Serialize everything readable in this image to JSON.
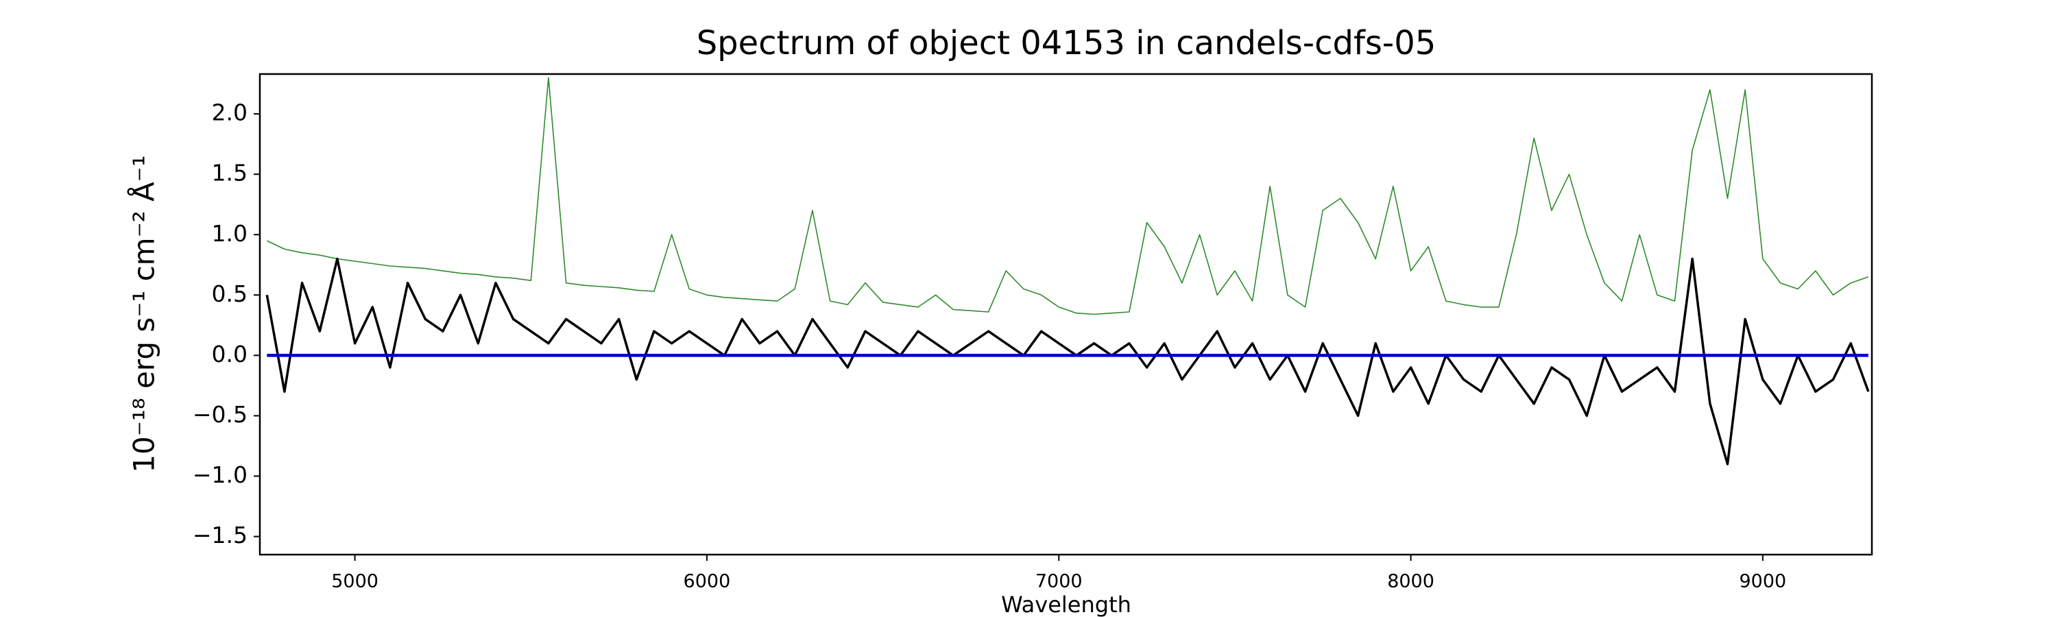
{
  "chart_data": {
    "type": "line",
    "title": "Spectrum of object 04153 in candels-cdfs-05",
    "xlabel": "Wavelength",
    "ylabel": "10⁻¹⁸ erg s⁻¹ cm⁻² Å⁻¹",
    "x": [
      4750,
      4800,
      4850,
      4900,
      4950,
      5000,
      5050,
      5100,
      5150,
      5200,
      5250,
      5300,
      5350,
      5400,
      5450,
      5500,
      5550,
      5600,
      5650,
      5700,
      5750,
      5800,
      5850,
      5900,
      5950,
      6000,
      6050,
      6100,
      6150,
      6200,
      6250,
      6300,
      6350,
      6400,
      6450,
      6500,
      6550,
      6600,
      6650,
      6700,
      6750,
      6800,
      6850,
      6900,
      6950,
      7000,
      7050,
      7100,
      7150,
      7200,
      7250,
      7300,
      7350,
      7400,
      7450,
      7500,
      7550,
      7600,
      7650,
      7700,
      7750,
      7800,
      7850,
      7900,
      7950,
      8000,
      8050,
      8100,
      8150,
      8200,
      8250,
      8300,
      8350,
      8400,
      8450,
      8500,
      8550,
      8600,
      8650,
      8700,
      8750,
      8800,
      8850,
      8900,
      8950,
      9000,
      9050,
      9100,
      9150,
      9200,
      9250,
      9300
    ],
    "series": [
      {
        "color": "#2e8b2e",
        "width": 1.6,
        "values": [
          0.95,
          0.88,
          0.85,
          0.83,
          0.8,
          0.78,
          0.76,
          0.74,
          0.73,
          0.72,
          0.7,
          0.68,
          0.67,
          0.65,
          0.64,
          0.62,
          2.3,
          0.6,
          0.58,
          0.57,
          0.56,
          0.54,
          0.53,
          1.0,
          0.55,
          0.5,
          0.48,
          0.47,
          0.46,
          0.45,
          0.55,
          1.2,
          0.45,
          0.42,
          0.6,
          0.44,
          0.42,
          0.4,
          0.5,
          0.38,
          0.37,
          0.36,
          0.7,
          0.55,
          0.5,
          0.4,
          0.35,
          0.34,
          0.35,
          0.36,
          1.1,
          0.9,
          0.6,
          1.0,
          0.5,
          0.7,
          0.45,
          1.4,
          0.5,
          0.4,
          1.2,
          1.3,
          1.1,
          0.8,
          1.4,
          0.7,
          0.9,
          0.45,
          0.42,
          0.4,
          0.4,
          1.0,
          1.8,
          1.2,
          1.5,
          1.0,
          0.6,
          0.45,
          1.0,
          0.5,
          0.45,
          1.7,
          2.2,
          1.3,
          2.2,
          0.8,
          0.6,
          0.55,
          0.7,
          0.5,
          0.6,
          0.65
        ]
      },
      {
        "color": "#000000",
        "width": 3.5,
        "values": [
          0.5,
          -0.3,
          0.6,
          0.2,
          0.8,
          0.1,
          0.4,
          -0.1,
          0.6,
          0.3,
          0.2,
          0.5,
          0.1,
          0.6,
          0.3,
          0.2,
          0.1,
          0.3,
          0.2,
          0.1,
          0.3,
          -0.2,
          0.2,
          0.1,
          0.2,
          0.1,
          0.0,
          0.3,
          0.1,
          0.2,
          0.0,
          0.3,
          0.1,
          -0.1,
          0.2,
          0.1,
          0.0,
          0.2,
          0.1,
          0.0,
          0.1,
          0.2,
          0.1,
          0.0,
          0.2,
          0.1,
          0.0,
          0.1,
          0.0,
          0.1,
          -0.1,
          0.1,
          -0.2,
          0.0,
          0.2,
          -0.1,
          0.1,
          -0.2,
          0.0,
          -0.3,
          0.1,
          -0.2,
          -0.5,
          0.1,
          -0.3,
          -0.1,
          -0.4,
          0.0,
          -0.2,
          -0.3,
          0.0,
          -0.2,
          -0.4,
          -0.1,
          -0.2,
          -0.5,
          0.0,
          -0.3,
          -0.2,
          -0.1,
          -0.3,
          0.8,
          -0.4,
          -0.9,
          0.3,
          -0.2,
          -0.4,
          0.0,
          -0.3,
          -0.2,
          0.1,
          -0.3
        ]
      },
      {
        "color": "#0000cc",
        "width": 4.5,
        "values": [
          0,
          0,
          0,
          0,
          0,
          0,
          0,
          0,
          0,
          0,
          0,
          0,
          0,
          0,
          0,
          0,
          0,
          0,
          0,
          0,
          0,
          0,
          0,
          0,
          0,
          0,
          0,
          0,
          0,
          0,
          0,
          0,
          0,
          0,
          0,
          0,
          0,
          0,
          0,
          0,
          0,
          0,
          0,
          0,
          0,
          0,
          0,
          0,
          0,
          0,
          0,
          0,
          0,
          0,
          0,
          0,
          0,
          0,
          0,
          0,
          0,
          0,
          0,
          0,
          0,
          0,
          0,
          0,
          0,
          0,
          0,
          0,
          0,
          0,
          0,
          0,
          0,
          0,
          0,
          0,
          0,
          0,
          0,
          0,
          0,
          0,
          0,
          0,
          0,
          0,
          0,
          0
        ]
      }
    ],
    "xlim": [
      4730,
      9310
    ],
    "ylim": [
      -1.65,
      2.33
    ],
    "xticks": [
      5000,
      6000,
      7000,
      8000,
      9000
    ],
    "yticks": [
      {
        "value": -1.5,
        "label": "−1.5"
      },
      {
        "value": -1.0,
        "label": "−1.0"
      },
      {
        "value": -0.5,
        "label": "−0.5"
      },
      {
        "value": 0.0,
        "label": "0.0"
      },
      0.5,
      {
        "value": 1.0,
        "label": "1.0"
      },
      1.5,
      {
        "value": 2.0,
        "label": "2.0"
      }
    ]
  }
}
